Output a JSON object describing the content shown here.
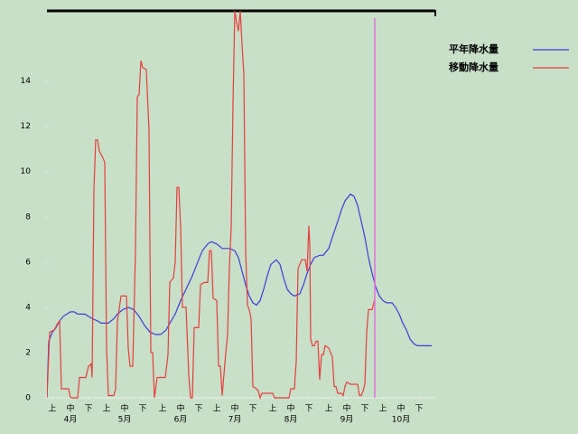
{
  "chart_data": {
    "type": "line",
    "xlim": [
      0,
      215
    ],
    "ylim": [
      0,
      17.1
    ],
    "yticks": [
      0,
      2,
      4,
      6,
      8,
      10,
      12,
      14
    ],
    "xticks": [
      {
        "value": 3,
        "label": "上"
      },
      {
        "value": 13,
        "label": "中"
      },
      {
        "value": 23,
        "label": "下"
      },
      {
        "value": 33,
        "label": "上"
      },
      {
        "value": 43,
        "label": "中"
      },
      {
        "value": 53,
        "label": "下"
      },
      {
        "value": 64,
        "label": "上"
      },
      {
        "value": 74,
        "label": "中"
      },
      {
        "value": 84,
        "label": "下"
      },
      {
        "value": 94,
        "label": "上"
      },
      {
        "value": 104,
        "label": "中"
      },
      {
        "value": 114,
        "label": "下"
      },
      {
        "value": 125,
        "label": "上"
      },
      {
        "value": 135,
        "label": "中"
      },
      {
        "value": 145,
        "label": "下"
      },
      {
        "value": 156,
        "label": "上"
      },
      {
        "value": 166,
        "label": "中"
      },
      {
        "value": 176,
        "label": "下"
      },
      {
        "value": 186,
        "label": "上"
      },
      {
        "value": 196,
        "label": "中"
      },
      {
        "value": 206,
        "label": "下"
      }
    ],
    "month_labels": [
      {
        "value": 13,
        "label": "4月"
      },
      {
        "value": 43,
        "label": "5月"
      },
      {
        "value": 74,
        "label": "6月"
      },
      {
        "value": 104,
        "label": "7月"
      },
      {
        "value": 135,
        "label": "8月"
      },
      {
        "value": 166,
        "label": "9月"
      },
      {
        "value": 196,
        "label": "10月"
      }
    ],
    "current_day": {
      "value": 181.5,
      "color": "#e070e0"
    },
    "series": [
      {
        "name": "平年降水量",
        "color": "#3c3cdc",
        "x": [
          0,
          1,
          3,
          5,
          7,
          9,
          11,
          13,
          15,
          17,
          21,
          23,
          25,
          28,
          30,
          34,
          37,
          39,
          42,
          45,
          48,
          51,
          54,
          57,
          60,
          63,
          66,
          68,
          71,
          74,
          77,
          80,
          83,
          86,
          89,
          91,
          94,
          97,
          101,
          104,
          106,
          108,
          110,
          112,
          114,
          116,
          118,
          120,
          122,
          124,
          127,
          129,
          131,
          133,
          135,
          137,
          140,
          142,
          144,
          146,
          148,
          151,
          153,
          156,
          158,
          161,
          163,
          165,
          168,
          170,
          172,
          174,
          176,
          178,
          180,
          182,
          184,
          186,
          188,
          191,
          193,
          195,
          197,
          199,
          201,
          203,
          205,
          209,
          213
        ],
        "values": [
          0,
          2.5,
          2.9,
          3.1,
          3.4,
          3.6,
          3.7,
          3.8,
          3.8,
          3.7,
          3.7,
          3.6,
          3.5,
          3.4,
          3.3,
          3.3,
          3.5,
          3.7,
          3.9,
          4.0,
          3.9,
          3.6,
          3.2,
          2.9,
          2.8,
          2.8,
          3.0,
          3.3,
          3.7,
          4.3,
          4.8,
          5.3,
          5.9,
          6.5,
          6.8,
          6.9,
          6.8,
          6.6,
          6.6,
          6.5,
          6.2,
          5.6,
          5.0,
          4.5,
          4.2,
          4.1,
          4.3,
          4.8,
          5.4,
          5.9,
          6.1,
          5.9,
          5.3,
          4.8,
          4.6,
          4.5,
          4.6,
          5.0,
          5.5,
          5.9,
          6.2,
          6.3,
          6.3,
          6.6,
          7.1,
          7.8,
          8.3,
          8.7,
          9.0,
          8.9,
          8.5,
          7.8,
          7.1,
          6.2,
          5.5,
          4.9,
          4.5,
          4.3,
          4.2,
          4.2,
          4.0,
          3.7,
          3.3,
          3.0,
          2.6,
          2.4,
          2.3,
          2.3,
          2.3
        ]
      },
      {
        "name": "移動降水量",
        "color": "#e83c3c",
        "x": [
          0,
          1.5,
          4,
          6,
          7,
          8,
          12,
          13,
          17,
          18,
          21.5,
          23,
          24.5,
          25,
          26,
          27,
          28,
          29,
          31,
          32,
          33,
          34,
          37,
          38,
          39,
          41,
          44,
          45,
          46,
          47.5,
          49,
          50,
          51,
          52,
          53,
          55,
          56.5,
          57.5,
          58.5,
          59.5,
          61,
          65.5,
          67,
          68,
          70,
          71,
          72,
          73,
          74,
          75,
          77,
          78.5,
          79.5,
          80.5,
          81.5,
          84,
          85,
          87,
          89,
          90,
          91,
          92,
          94,
          95,
          96,
          97,
          99,
          100,
          101,
          102,
          103,
          104,
          105,
          106,
          107,
          108,
          109,
          110,
          111,
          112,
          113,
          114,
          116,
          117,
          118,
          119,
          124,
          125,
          126,
          134,
          135,
          137,
          138,
          139,
          141,
          143,
          144,
          145,
          145.5,
          146,
          147,
          148,
          149,
          150,
          151,
          152,
          153,
          154,
          156,
          158,
          159,
          160,
          161,
          163,
          164,
          165,
          166,
          168,
          170,
          172,
          173,
          174,
          175,
          176,
          177,
          178,
          180,
          181,
          181.5
        ],
        "values": [
          0,
          2.9,
          3.0,
          3.3,
          3.4,
          0.4,
          0.4,
          0,
          0,
          0.9,
          0.9,
          1.4,
          1.5,
          0.9,
          9.2,
          11.4,
          11.4,
          10.9,
          10.6,
          10.4,
          2.2,
          0.1,
          0.1,
          0.4,
          3.4,
          4.5,
          4.5,
          2.2,
          1.4,
          1.4,
          6.5,
          13.3,
          13.4,
          14.9,
          14.6,
          14.5,
          11.8,
          2.0,
          2.0,
          0,
          0.9,
          0.9,
          1.9,
          5.1,
          5.3,
          6.0,
          9.3,
          9.3,
          7.5,
          4.0,
          4.0,
          1.0,
          0,
          0,
          3.1,
          3.1,
          5.0,
          5.1,
          5.1,
          6.5,
          6.5,
          4.4,
          4.3,
          1.4,
          1.4,
          0.1,
          2.0,
          2.8,
          5.8,
          7.5,
          13.0,
          17.1,
          16.6,
          16.2,
          17.1,
          15.6,
          14.3,
          6.5,
          4.1,
          3.9,
          3.5,
          0.5,
          0.4,
          0.3,
          0,
          0.2,
          0.2,
          0.2,
          0,
          0,
          0.4,
          0.4,
          1.6,
          5.7,
          6.1,
          6.1,
          5.6,
          7.6,
          6.8,
          2.6,
          2.3,
          2.3,
          2.5,
          2.5,
          0.8,
          1.9,
          1.9,
          2.3,
          2.2,
          1.8,
          0.5,
          0.5,
          0.2,
          0.2,
          0.1,
          0.5,
          0.7,
          0.6,
          0.6,
          0.6,
          0.1,
          0.1,
          0.3,
          0.6,
          2.9,
          3.9,
          3.9,
          4.2,
          4.4
        ]
      }
    ]
  }
}
